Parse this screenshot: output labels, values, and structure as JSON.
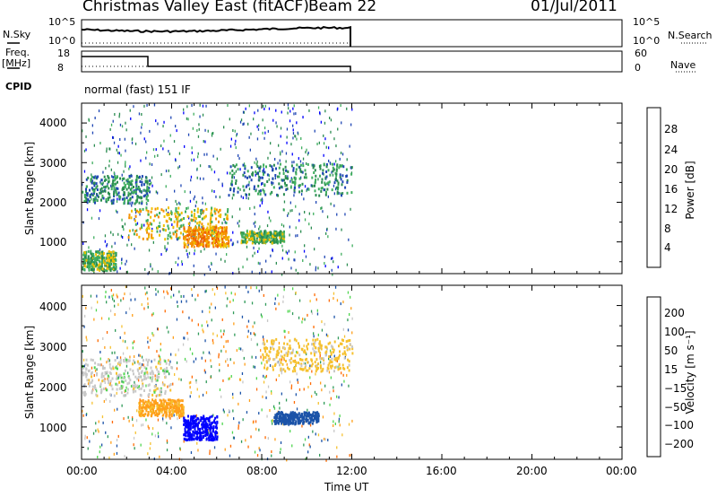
{
  "header": {
    "radar": "Christmas Valley East (fitACF)",
    "beam": "Beam 22",
    "date": "01/Jul/2011"
  },
  "meta_panels": {
    "nsky_label": "N.Sky",
    "nsearch_label": "N.Search",
    "noise_ticks": [
      "10^5",
      "10^0"
    ],
    "freq_label": "Freq.",
    "freq_unit": "[MHz]",
    "freq_ticks": [
      "18",
      "8"
    ],
    "nave_label": "Nave",
    "nave_ticks": [
      "60",
      "0"
    ],
    "cpid_label": "CPID",
    "cpid_value": "normal (fast) 151 IF"
  },
  "colors": {
    "power_scale": [
      "#0000ff",
      "#1e46b4",
      "#2a8c50",
      "#3fae5f",
      "#f0c000",
      "#f59000",
      "#f06000",
      "#e00000"
    ],
    "velocity_scale": [
      "#ff0000",
      "#ff6a00",
      "#ff9f1a",
      "#f6c12f",
      "#c8c8c8",
      "#4fd64f",
      "#2f9a58",
      "#1b53a8",
      "#0000ff"
    ]
  },
  "chart_data": [
    {
      "type": "heatmap",
      "panel": "power",
      "xlabel": "Time UT",
      "ylabel": "Slant Range [km]",
      "x_ticks": [
        "00:00",
        "04:00",
        "08:00",
        "12:00",
        "16:00",
        "20:00",
        "00:00"
      ],
      "x_range_hours": [
        0,
        24
      ],
      "y_ticks": [
        1000,
        2000,
        3000,
        4000
      ],
      "y_range_km": [
        200,
        4500
      ],
      "data_extent_hours": [
        0,
        12
      ],
      "colorbar": {
        "label": "Power [dB]",
        "ticks": [
          "28",
          "24",
          "20",
          "16",
          "12",
          "8",
          "4"
        ],
        "range": [
          0,
          32
        ]
      },
      "features": [
        {
          "x_hours": [
            0.0,
            3.0
          ],
          "range_km": [
            2000,
            2700
          ],
          "value": 10
        },
        {
          "x_hours": [
            2.0,
            6.5
          ],
          "range_km": [
            1100,
            1900
          ],
          "value": 18
        },
        {
          "x_hours": [
            4.5,
            6.5
          ],
          "range_km": [
            900,
            1400
          ],
          "value": 22
        },
        {
          "x_hours": [
            6.5,
            12.0
          ],
          "range_km": [
            2200,
            3000
          ],
          "value": 10
        },
        {
          "x_hours": [
            7.0,
            9.0
          ],
          "range_km": [
            1000,
            1300
          ],
          "value": 14
        },
        {
          "x_hours": [
            0.0,
            1.5
          ],
          "range_km": [
            300,
            800
          ],
          "value": 14
        }
      ]
    },
    {
      "type": "heatmap",
      "panel": "velocity",
      "xlabel": "Time UT",
      "ylabel": "Slant Range [km]",
      "x_ticks": [
        "00:00",
        "04:00",
        "08:00",
        "12:00",
        "16:00",
        "20:00",
        "00:00"
      ],
      "x_range_hours": [
        0,
        24
      ],
      "y_ticks": [
        1000,
        2000,
        3000,
        4000
      ],
      "y_range_km": [
        200,
        4500
      ],
      "data_extent_hours": [
        0,
        12
      ],
      "colorbar": {
        "label": "Velocity [m s⁻¹]",
        "ticks": [
          "200",
          "100",
          "50",
          "15",
          "−15",
          "−50",
          "−100",
          "−200"
        ],
        "range": [
          -250,
          250
        ]
      },
      "features": [
        {
          "x_hours": [
            0.0,
            4.0
          ],
          "range_km": [
            1800,
            2700
          ],
          "value": 0
        },
        {
          "x_hours": [
            2.5,
            4.5
          ],
          "range_km": [
            1300,
            1700
          ],
          "value": -60
        },
        {
          "x_hours": [
            4.5,
            6.0
          ],
          "range_km": [
            700,
            1300
          ],
          "value": 250
        },
        {
          "x_hours": [
            8.5,
            10.5
          ],
          "range_km": [
            1100,
            1400
          ],
          "value": 150
        },
        {
          "x_hours": [
            8.0,
            12.0
          ],
          "range_km": [
            2400,
            3200
          ],
          "value": -30
        }
      ]
    }
  ]
}
